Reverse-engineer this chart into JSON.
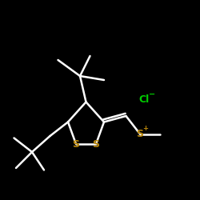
{
  "bg_color": "#000000",
  "bond_color": "#ffffff",
  "S_color": "#b8860b",
  "Cl_color": "#00cc00",
  "bond_lw": 1.8,
  "xlim": [
    0,
    10
  ],
  "ylim": [
    0,
    10
  ],
  "figsize": [
    2.5,
    2.5
  ],
  "dpi": 100
}
